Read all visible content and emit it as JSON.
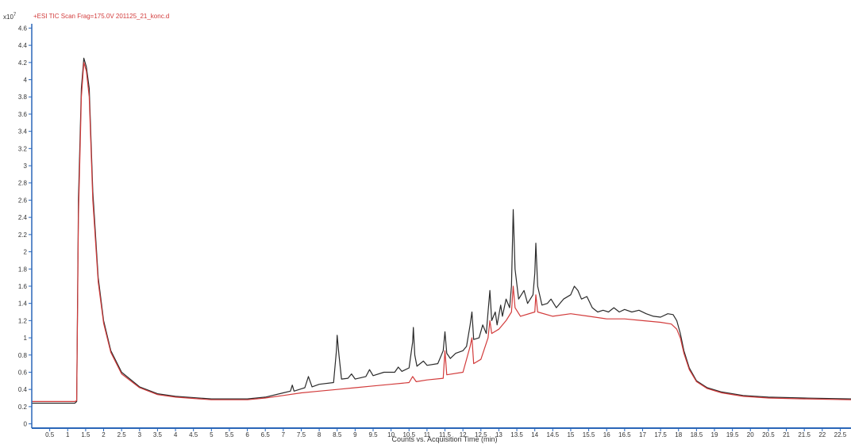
{
  "header": {
    "trace_label": "+ESI TIC Scan Frag=175.0V 201125_21_konc.d",
    "y_multiplier_base": "x10",
    "y_multiplier_exponent": "7"
  },
  "colors": {
    "trace_dark": "#2b2b2b",
    "trace_red": "#d23b3b",
    "axis": "#2a66b8",
    "text": "#333333",
    "header_text": "#d23b3b"
  },
  "chart_data": {
    "type": "line",
    "title": "+ESI TIC Scan Frag=175.0V 201125_21_konc.d",
    "xlabel": "Counts vs. Acquisition Time (min)",
    "ylabel": "",
    "y_scale_note": "x10^7",
    "xlim": [
      0,
      22.8
    ],
    "ylim": [
      -0.05,
      4.65
    ],
    "grid": false,
    "legend": "none",
    "x_ticks": [
      0.5,
      1,
      1.5,
      2,
      2.5,
      3,
      3.5,
      4,
      4.5,
      5,
      5.5,
      6,
      6.5,
      7,
      7.5,
      8,
      8.5,
      9,
      9.5,
      10,
      10.5,
      11,
      11.5,
      12,
      12.5,
      13,
      13.5,
      14,
      14.5,
      15,
      15.5,
      16,
      16.5,
      17,
      17.5,
      18,
      18.5,
      19,
      19.5,
      20,
      20.5,
      21,
      21.5,
      22,
      22.5
    ],
    "y_ticks": [
      0,
      0.2,
      0.4,
      0.6,
      0.8,
      1,
      1.2,
      1.4,
      1.6,
      1.8,
      2,
      2.2,
      2.4,
      2.6,
      2.8,
      3,
      3.2,
      3.4,
      3.6,
      3.8,
      4,
      4.2,
      4.4,
      4.6
    ],
    "series": [
      {
        "color": "#2b2b2b",
        "points": [
          [
            0.0,
            0.24
          ],
          [
            1.2,
            0.24
          ],
          [
            1.25,
            0.26
          ],
          [
            1.3,
            2.6
          ],
          [
            1.38,
            3.9
          ],
          [
            1.45,
            4.25
          ],
          [
            1.52,
            4.15
          ],
          [
            1.6,
            3.9
          ],
          [
            1.7,
            2.7
          ],
          [
            1.85,
            1.7
          ],
          [
            2.0,
            1.2
          ],
          [
            2.2,
            0.85
          ],
          [
            2.5,
            0.6
          ],
          [
            3.0,
            0.43
          ],
          [
            3.5,
            0.35
          ],
          [
            4.0,
            0.32
          ],
          [
            5.0,
            0.29
          ],
          [
            6.0,
            0.29
          ],
          [
            6.5,
            0.31
          ],
          [
            7.0,
            0.36
          ],
          [
            7.2,
            0.38
          ],
          [
            7.25,
            0.45
          ],
          [
            7.3,
            0.38
          ],
          [
            7.6,
            0.42
          ],
          [
            7.7,
            0.55
          ],
          [
            7.8,
            0.43
          ],
          [
            8.0,
            0.46
          ],
          [
            8.4,
            0.48
          ],
          [
            8.48,
            0.85
          ],
          [
            8.5,
            1.03
          ],
          [
            8.55,
            0.8
          ],
          [
            8.62,
            0.52
          ],
          [
            8.8,
            0.53
          ],
          [
            8.9,
            0.58
          ],
          [
            9.0,
            0.52
          ],
          [
            9.3,
            0.55
          ],
          [
            9.4,
            0.63
          ],
          [
            9.5,
            0.56
          ],
          [
            9.8,
            0.6
          ],
          [
            10.1,
            0.6
          ],
          [
            10.2,
            0.66
          ],
          [
            10.3,
            0.61
          ],
          [
            10.5,
            0.65
          ],
          [
            10.6,
            0.95
          ],
          [
            10.62,
            1.12
          ],
          [
            10.66,
            0.8
          ],
          [
            10.72,
            0.67
          ],
          [
            10.9,
            0.73
          ],
          [
            11.0,
            0.68
          ],
          [
            11.3,
            0.7
          ],
          [
            11.45,
            0.85
          ],
          [
            11.5,
            1.07
          ],
          [
            11.55,
            0.82
          ],
          [
            11.65,
            0.76
          ],
          [
            11.8,
            0.82
          ],
          [
            12.0,
            0.85
          ],
          [
            12.1,
            0.9
          ],
          [
            12.2,
            1.15
          ],
          [
            12.25,
            1.3
          ],
          [
            12.3,
            0.98
          ],
          [
            12.45,
            1.0
          ],
          [
            12.55,
            1.15
          ],
          [
            12.65,
            1.05
          ],
          [
            12.7,
            1.3
          ],
          [
            12.75,
            1.55
          ],
          [
            12.8,
            1.2
          ],
          [
            12.9,
            1.3
          ],
          [
            12.95,
            1.15
          ],
          [
            13.05,
            1.38
          ],
          [
            13.1,
            1.25
          ],
          [
            13.2,
            1.45
          ],
          [
            13.3,
            1.35
          ],
          [
            13.35,
            1.6
          ],
          [
            13.4,
            2.49
          ],
          [
            13.45,
            1.8
          ],
          [
            13.55,
            1.45
          ],
          [
            13.7,
            1.55
          ],
          [
            13.8,
            1.4
          ],
          [
            13.95,
            1.5
          ],
          [
            14.0,
            1.75
          ],
          [
            14.03,
            2.1
          ],
          [
            14.08,
            1.6
          ],
          [
            14.2,
            1.38
          ],
          [
            14.35,
            1.4
          ],
          [
            14.45,
            1.45
          ],
          [
            14.6,
            1.35
          ],
          [
            14.8,
            1.45
          ],
          [
            15.0,
            1.5
          ],
          [
            15.1,
            1.6
          ],
          [
            15.2,
            1.55
          ],
          [
            15.3,
            1.45
          ],
          [
            15.45,
            1.48
          ],
          [
            15.6,
            1.35
          ],
          [
            15.75,
            1.3
          ],
          [
            15.9,
            1.32
          ],
          [
            16.05,
            1.3
          ],
          [
            16.2,
            1.35
          ],
          [
            16.35,
            1.3
          ],
          [
            16.5,
            1.33
          ],
          [
            16.7,
            1.3
          ],
          [
            16.9,
            1.32
          ],
          [
            17.1,
            1.28
          ],
          [
            17.3,
            1.25
          ],
          [
            17.5,
            1.24
          ],
          [
            17.7,
            1.28
          ],
          [
            17.85,
            1.27
          ],
          [
            17.95,
            1.2
          ],
          [
            18.05,
            1.05
          ],
          [
            18.15,
            0.85
          ],
          [
            18.3,
            0.65
          ],
          [
            18.5,
            0.5
          ],
          [
            18.8,
            0.42
          ],
          [
            19.2,
            0.37
          ],
          [
            19.8,
            0.33
          ],
          [
            20.5,
            0.31
          ],
          [
            21.5,
            0.3
          ],
          [
            22.8,
            0.29
          ]
        ]
      },
      {
        "color": "#d23b3b",
        "points": [
          [
            0.0,
            0.26
          ],
          [
            1.2,
            0.26
          ],
          [
            1.25,
            0.27
          ],
          [
            1.3,
            2.4
          ],
          [
            1.38,
            3.8
          ],
          [
            1.45,
            4.2
          ],
          [
            1.52,
            4.1
          ],
          [
            1.6,
            3.8
          ],
          [
            1.7,
            2.6
          ],
          [
            1.85,
            1.65
          ],
          [
            2.0,
            1.17
          ],
          [
            2.2,
            0.83
          ],
          [
            2.5,
            0.58
          ],
          [
            3.0,
            0.42
          ],
          [
            3.5,
            0.34
          ],
          [
            4.0,
            0.31
          ],
          [
            5.0,
            0.28
          ],
          [
            6.0,
            0.28
          ],
          [
            6.5,
            0.3
          ],
          [
            7.0,
            0.33
          ],
          [
            7.5,
            0.36
          ],
          [
            8.0,
            0.38
          ],
          [
            8.5,
            0.4
          ],
          [
            9.0,
            0.42
          ],
          [
            9.5,
            0.44
          ],
          [
            10.0,
            0.46
          ],
          [
            10.5,
            0.48
          ],
          [
            10.6,
            0.55
          ],
          [
            10.7,
            0.49
          ],
          [
            11.0,
            0.51
          ],
          [
            11.45,
            0.53
          ],
          [
            11.5,
            0.85
          ],
          [
            11.55,
            0.57
          ],
          [
            12.0,
            0.6
          ],
          [
            12.2,
            0.9
          ],
          [
            12.25,
            1.0
          ],
          [
            12.3,
            0.7
          ],
          [
            12.5,
            0.75
          ],
          [
            12.7,
            1.0
          ],
          [
            12.75,
            1.2
          ],
          [
            12.8,
            1.05
          ],
          [
            13.0,
            1.1
          ],
          [
            13.2,
            1.2
          ],
          [
            13.35,
            1.3
          ],
          [
            13.4,
            1.6
          ],
          [
            13.45,
            1.35
          ],
          [
            13.6,
            1.25
          ],
          [
            14.0,
            1.3
          ],
          [
            14.03,
            1.5
          ],
          [
            14.08,
            1.3
          ],
          [
            14.5,
            1.25
          ],
          [
            15.0,
            1.28
          ],
          [
            15.5,
            1.25
          ],
          [
            16.0,
            1.22
          ],
          [
            16.5,
            1.22
          ],
          [
            17.0,
            1.2
          ],
          [
            17.5,
            1.18
          ],
          [
            17.8,
            1.16
          ],
          [
            17.95,
            1.1
          ],
          [
            18.05,
            1.0
          ],
          [
            18.15,
            0.82
          ],
          [
            18.3,
            0.63
          ],
          [
            18.5,
            0.49
          ],
          [
            18.8,
            0.41
          ],
          [
            19.2,
            0.36
          ],
          [
            19.8,
            0.32
          ],
          [
            20.5,
            0.3
          ],
          [
            21.5,
            0.29
          ],
          [
            22.8,
            0.28
          ]
        ]
      }
    ]
  }
}
